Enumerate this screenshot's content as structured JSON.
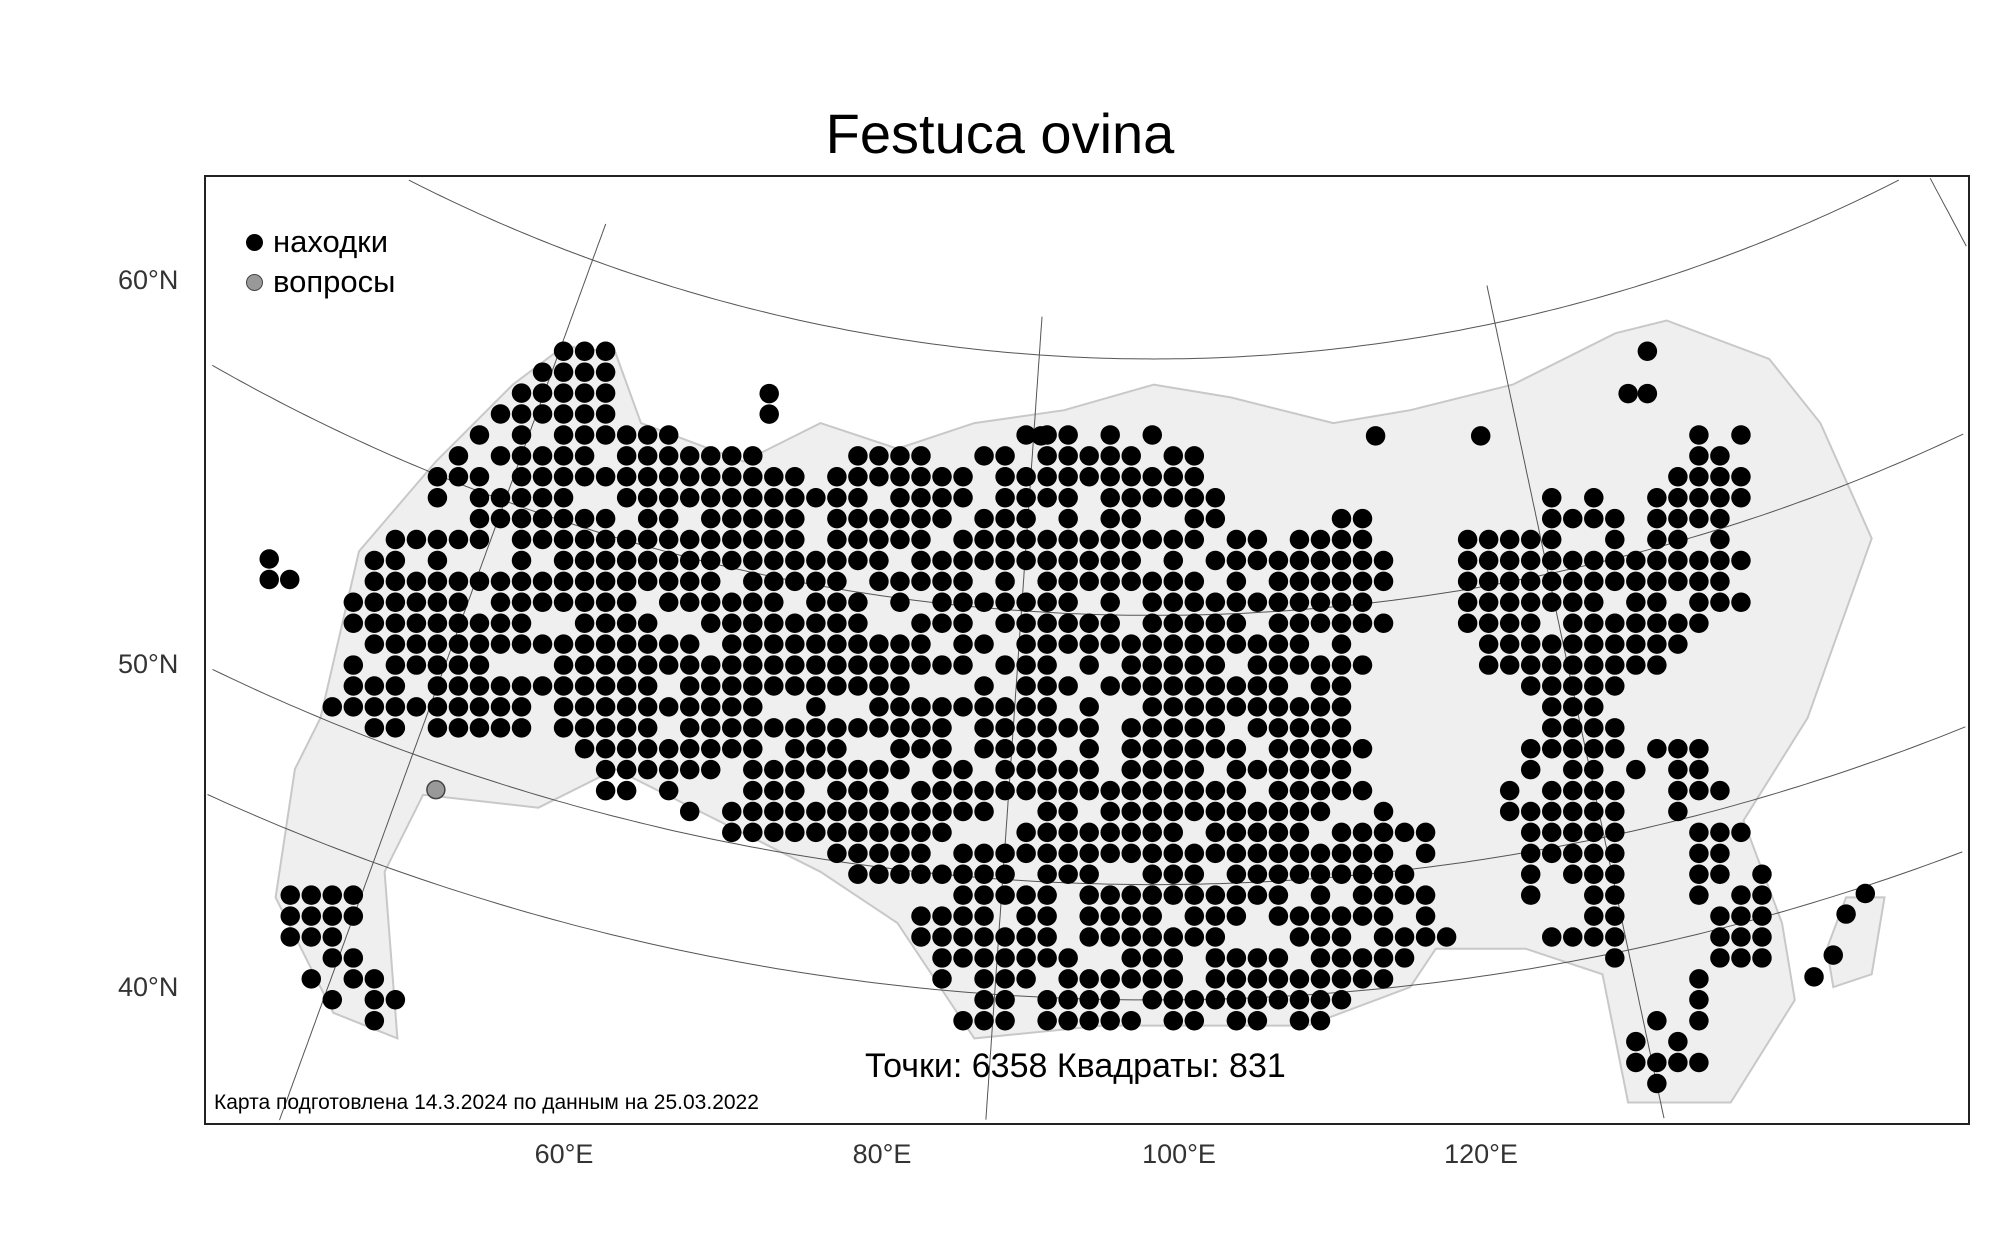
{
  "title": "Festuca ovina",
  "legend": [
    {
      "label": "находки",
      "color": "#000000"
    },
    {
      "label": "вопросы",
      "color": "#999999"
    }
  ],
  "axes": {
    "lat_labels": [
      "60°N",
      "50°N",
      "40°N"
    ],
    "lon_labels": [
      "60°E",
      "80°E",
      "100°E",
      "120°E"
    ]
  },
  "stats": "Точки: 6358 Квадраты: 831",
  "credit": "Карта подготовлена 14.3.2024 по данным на 25.03.2022",
  "colors": {
    "land": "#efefef",
    "coast": "#c8c8c8",
    "found": "#000000",
    "question": "#999999",
    "graticule": "#555555"
  }
}
